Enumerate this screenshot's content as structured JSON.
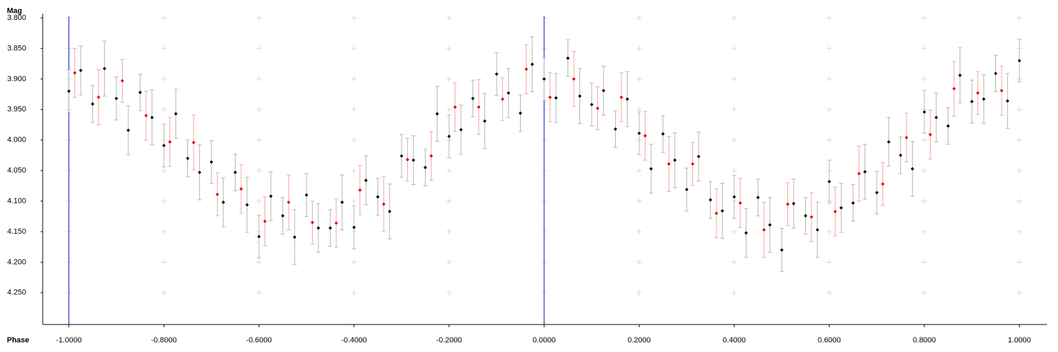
{
  "chart_data": {
    "type": "scatter",
    "xlabel": "Phase",
    "ylabel": "Mag",
    "xlim": [
      -1.055,
      1.058
    ],
    "ylim": [
      3.8,
      4.302
    ],
    "y_inverted": true,
    "xticks": [
      {
        "value": -1,
        "label": "-1.0000"
      },
      {
        "value": -0.8,
        "label": "-0.8000"
      },
      {
        "value": -0.6,
        "label": "-0.6000"
      },
      {
        "value": -0.4,
        "label": "-0.4000"
      },
      {
        "value": -0.2,
        "label": "-0.2000"
      },
      {
        "value": 0,
        "label": "0.0000"
      },
      {
        "value": 0.2,
        "label": "0.2000"
      },
      {
        "value": 0.4,
        "label": "0.4000"
      },
      {
        "value": 0.6,
        "label": "0.6000"
      },
      {
        "value": 0.8,
        "label": "0.8000"
      },
      {
        "value": 1,
        "label": "1.0000"
      }
    ],
    "yticks": [
      {
        "value": 3.8,
        "label": "3.800"
      },
      {
        "value": 3.85,
        "label": "3.850"
      },
      {
        "value": 3.9,
        "label": "3.900"
      },
      {
        "value": 3.95,
        "label": "3.950"
      },
      {
        "value": 4,
        "label": "4.000"
      },
      {
        "value": 4.05,
        "label": "4.050"
      },
      {
        "value": 4.1,
        "label": "4.100"
      },
      {
        "value": 4.15,
        "label": "4.150"
      },
      {
        "value": 4.2,
        "label": "4.200"
      },
      {
        "value": 4.25,
        "label": "4.250"
      }
    ],
    "grid": "crosses",
    "grid_color": "#d8d8d8",
    "vlines": [
      -1,
      0
    ],
    "vline_color": "#0000cc",
    "series": [
      {
        "color": "#000000",
        "error_color": "#b4b4b4",
        "x": [
          -1,
          -0.975,
          -0.95,
          -0.925,
          -0.9,
          -0.875,
          -0.85,
          -0.825,
          -0.8,
          -0.775,
          -0.75,
          -0.725,
          -0.7,
          -0.675,
          -0.65,
          -0.625,
          -0.6,
          -0.575,
          -0.55,
          -0.525,
          -0.5,
          -0.475,
          -0.45,
          -0.425,
          -0.4,
          -0.375,
          -0.35,
          -0.325,
          -0.3,
          -0.275,
          -0.25,
          -0.225,
          -0.2,
          -0.175,
          -0.15,
          -0.125,
          -0.1,
          -0.075,
          -0.05,
          -0.025,
          0,
          0.025,
          0.05,
          0.075,
          0.1,
          0.125,
          0.15,
          0.175,
          0.2,
          0.225,
          0.25,
          0.275,
          0.3,
          0.325,
          0.35,
          0.375,
          0.4,
          0.425,
          0.45,
          0.475,
          0.5,
          0.525,
          0.55,
          0.575,
          0.6,
          0.625,
          0.65,
          0.675,
          0.7,
          0.725,
          0.75,
          0.775,
          0.8,
          0.825,
          0.85,
          0.875,
          0.9,
          0.925,
          0.95,
          0.975,
          1
        ],
        "y": [
          3.92,
          3.886,
          3.941,
          3.883,
          3.932,
          3.984,
          3.922,
          3.963,
          4.009,
          3.957,
          4.03,
          4.053,
          4.036,
          4.102,
          4.053,
          4.106,
          4.158,
          4.092,
          4.124,
          4.159,
          4.09,
          4.144,
          4.144,
          4.102,
          4.143,
          4.066,
          4.093,
          4.117,
          4.026,
          4.033,
          4.045,
          3.957,
          3.994,
          3.983,
          3.932,
          3.969,
          3.892,
          3.923,
          3.956,
          3.876,
          3.9,
          3.931,
          3.866,
          3.928,
          3.942,
          3.919,
          3.982,
          3.933,
          3.989,
          4.047,
          3.99,
          4.033,
          4.081,
          4.027,
          4.098,
          4.116,
          4.093,
          4.152,
          4.094,
          4.139,
          4.18,
          4.104,
          4.124,
          4.147,
          4.068,
          4.111,
          4.103,
          4.052,
          4.086,
          4.003,
          4.025,
          4.047,
          3.954,
          3.963,
          3.977,
          3.894,
          3.937,
          3.933,
          3.891,
          3.936,
          3.87
        ],
        "err": [
          0.035,
          0.04,
          0.03,
          0.045,
          0.035,
          0.04,
          0.03,
          0.045,
          0.035,
          0.04,
          0.03,
          0.045,
          0.035,
          0.04,
          0.03,
          0.045,
          0.035,
          0.04,
          0.03,
          0.045,
          0.035,
          0.04,
          0.03,
          0.045,
          0.035,
          0.04,
          0.03,
          0.045,
          0.035,
          0.04,
          0.03,
          0.045,
          0.035,
          0.04,
          0.03,
          0.045,
          0.035,
          0.04,
          0.03,
          0.045,
          0.035,
          0.04,
          0.03,
          0.045,
          0.035,
          0.04,
          0.03,
          0.045,
          0.035,
          0.04,
          0.03,
          0.045,
          0.035,
          0.04,
          0.03,
          0.045,
          0.035,
          0.04,
          0.03,
          0.045,
          0.035,
          0.04,
          0.03,
          0.045,
          0.035,
          0.04,
          0.03,
          0.045,
          0.035,
          0.04,
          0.03,
          0.045,
          0.035,
          0.04,
          0.03,
          0.045,
          0.035,
          0.04,
          0.03,
          0.045,
          0.035
        ]
      },
      {
        "color": "#e00000",
        "error_color": "#f0a8a8",
        "x": [
          -0.9875,
          -0.9375,
          -0.8875,
          -0.8375,
          -0.7875,
          -0.7375,
          -0.6875,
          -0.6375,
          -0.5875,
          -0.5375,
          -0.4875,
          -0.4375,
          -0.3875,
          -0.3375,
          -0.2875,
          -0.2375,
          -0.1875,
          -0.1375,
          -0.0875,
          -0.0375,
          0.0125,
          0.0625,
          0.1125,
          0.1625,
          0.2125,
          0.2625,
          0.3125,
          0.3625,
          0.4125,
          0.4625,
          0.5125,
          0.5625,
          0.6125,
          0.6625,
          0.7125,
          0.7625,
          0.8125,
          0.8625,
          0.9125,
          0.9625
        ],
        "y": [
          3.89,
          3.93,
          3.903,
          3.96,
          4.003,
          4.004,
          4.089,
          4.08,
          4.133,
          4.102,
          4.135,
          4.136,
          4.082,
          4.105,
          4.032,
          4.026,
          3.946,
          3.946,
          3.933,
          3.884,
          3.93,
          3.9,
          3.948,
          3.93,
          3.993,
          4.039,
          4.039,
          4.12,
          4.103,
          4.147,
          4.105,
          4.126,
          4.117,
          4.055,
          4.072,
          3.996,
          3.991,
          3.916,
          3.923,
          3.919
        ],
        "err": [
          0.04,
          0.045,
          0.035,
          0.04,
          0.04,
          0.045,
          0.035,
          0.04,
          0.04,
          0.045,
          0.035,
          0.04,
          0.04,
          0.045,
          0.035,
          0.04,
          0.04,
          0.045,
          0.035,
          0.04,
          0.04,
          0.045,
          0.035,
          0.04,
          0.04,
          0.045,
          0.035,
          0.04,
          0.04,
          0.045,
          0.035,
          0.04,
          0.04,
          0.045,
          0.035,
          0.04,
          0.04,
          0.045,
          0.035,
          0.04
        ]
      }
    ]
  }
}
